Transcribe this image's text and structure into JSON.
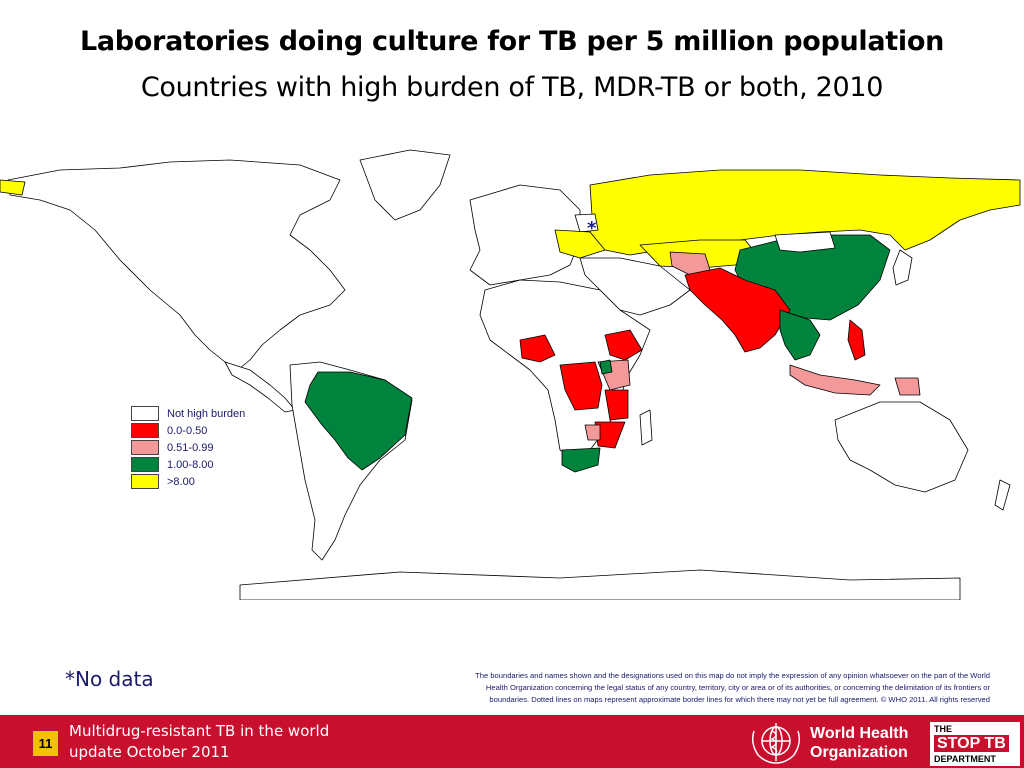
{
  "title": "Laboratories doing culture for TB per 5 million population",
  "subtitle": "Countries with high burden of TB, MDR-TB or both, 2010",
  "legend": {
    "items": [
      {
        "label": "Not high burden",
        "color": "#ffffff"
      },
      {
        "label": "0.0-0.50",
        "color": "#ff0000"
      },
      {
        "label": "0.51-0.99",
        "color": "#f4999a"
      },
      {
        "label": "1.00-8.00",
        "color": "#00843d"
      },
      {
        "label": ">8.00",
        "color": "#ffff00"
      }
    ]
  },
  "map": {
    "no_data_marker": "*"
  },
  "no_data_note": "*No data",
  "disclaimer": {
    "line1": "The boundaries and names shown and the designations used on this map do not imply the expression of any opinion whatsoever on the part of the World",
    "line2": "Health Organization concerning the legal status of any country, territory, city or area or of its authorities, or concerning the delimitation of its frontiers or",
    "line3": "boundaries.  Dotted lines on maps represent approximate border lines for which there may not yet be full agreement.    © WHO 2011. All rights reserved"
  },
  "footer": {
    "page_number": "11",
    "line1": "Multidrug-resistant TB in the world",
    "line2": "update October 2011",
    "who_line1": "World Health",
    "who_line2": "Organization",
    "stoptb_line1": "THE",
    "stoptb_line2": "STOP TB",
    "stoptb_line3": "DEPARTMENT"
  },
  "colors": {
    "footer_bg": "#c8102e",
    "page_badge": "#f2c200",
    "text_blue": "#1a1a6e"
  }
}
